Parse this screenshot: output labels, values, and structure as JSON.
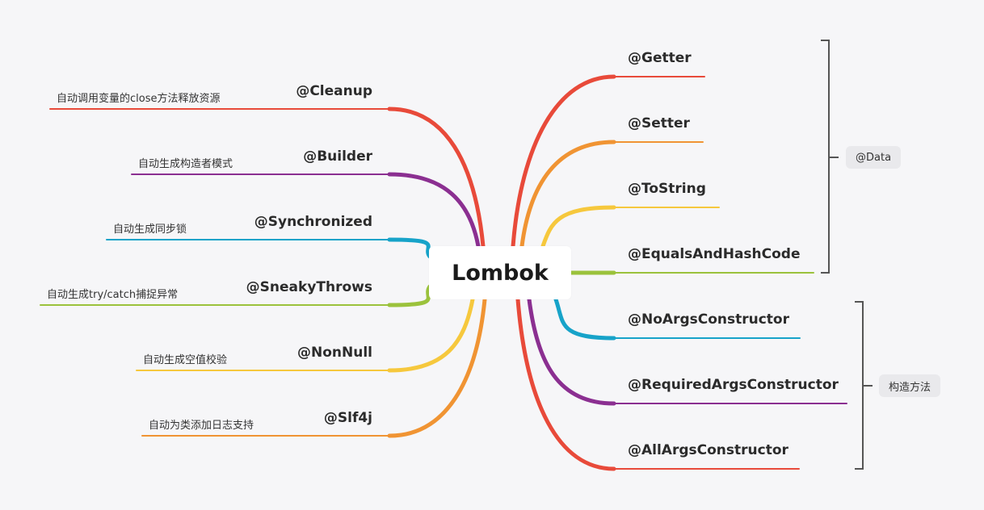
{
  "root": "Lombok",
  "left": [
    {
      "label": "@Cleanup",
      "note": "自动调用变量的close方法释放资源",
      "color": "#e84a3a"
    },
    {
      "label": "@Builder",
      "note": "自动生成构造者模式",
      "color": "#8b2f91"
    },
    {
      "label": "@Synchronized",
      "note": "自动生成同步锁",
      "color": "#17a3c9"
    },
    {
      "label": "@SneakyThrows",
      "note": "自动生成try/catch捕捉异常",
      "color": "#9bc23c"
    },
    {
      "label": "@NonNull",
      "note": "自动生成空值校验",
      "color": "#f6c83d"
    },
    {
      "label": "@Slf4j",
      "note": "自动为类添加日志支持",
      "color": "#f09433"
    }
  ],
  "right": [
    {
      "label": "@Getter",
      "color": "#e84a3a"
    },
    {
      "label": "@Setter",
      "color": "#f09433"
    },
    {
      "label": "@ToString",
      "color": "#f6c83d"
    },
    {
      "label": "@EqualsAndHashCode",
      "color": "#9bc23c"
    },
    {
      "label": "@NoArgsConstructor",
      "color": "#17a3c9"
    },
    {
      "label": "@RequiredArgsConstructor",
      "color": "#8b2f91"
    },
    {
      "label": "@AllArgsConstructor",
      "color": "#e84a3a"
    }
  ],
  "groups": [
    {
      "label": "@Data"
    },
    {
      "label": "构造方法"
    }
  ]
}
